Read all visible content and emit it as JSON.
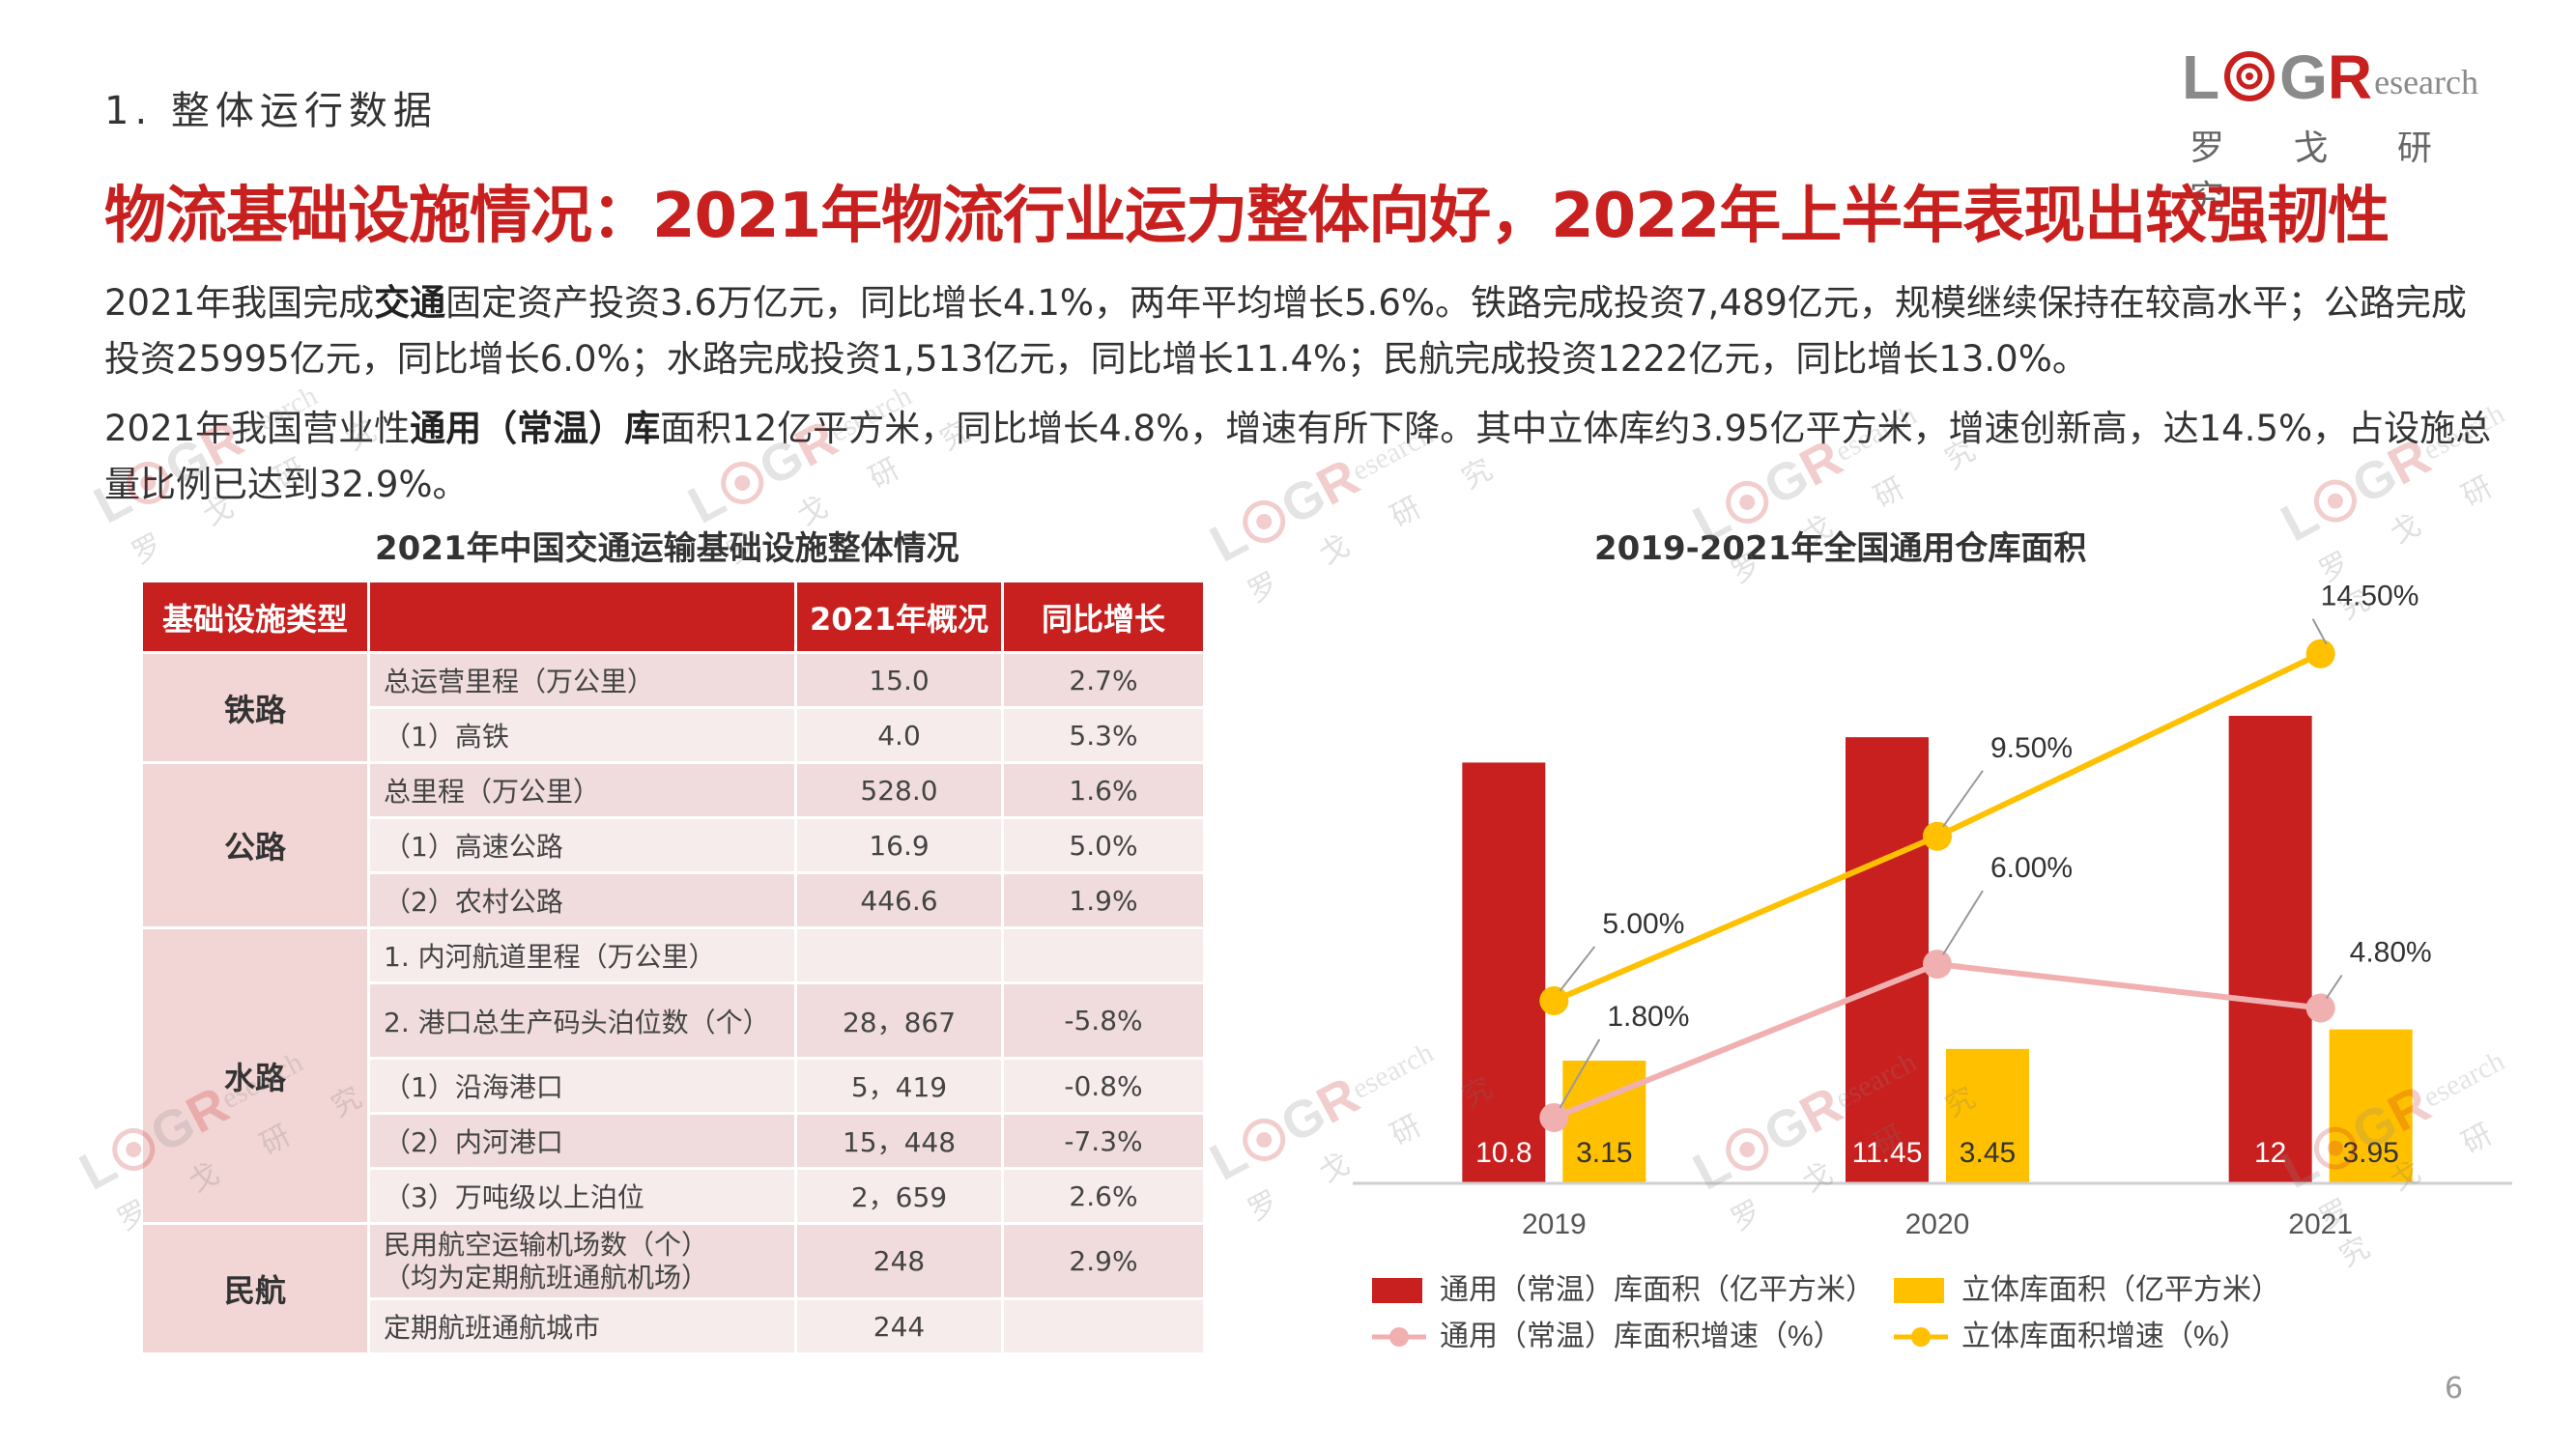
{
  "header": {
    "section_label": "1. 整体运行数据",
    "main_title": "物流基础设施情况：2021年物流行业运力整体向好，2022年上半年表现出较强韧性"
  },
  "logo": {
    "letters": [
      "L",
      "G",
      "R"
    ],
    "word": "esearch",
    "cn": "罗 戈 研 究",
    "color_red": "#c8201f",
    "color_gray": "#8a8a8a"
  },
  "paragraphs": {
    "p1": [
      {
        "t": "2021年我国完成",
        "b": false
      },
      {
        "t": "交通",
        "b": true
      },
      {
        "t": "固定资产投资3.6万亿元，同比增长4.1%，两年平均增长5.6%。铁路完成投资7,489亿元，规模继续保持在较高水平；公路完成投资25995亿元，同比增长6.0%；水路完成投资1,513亿元，同比增长11.4%；民航完成投资1222亿元，同比增长13.0%。",
        "b": false
      }
    ],
    "p2": [
      {
        "t": "2021年我国营业性",
        "b": false
      },
      {
        "t": "通用（常温）库",
        "b": true
      },
      {
        "t": "面积12亿平方米，同比增长4.8%，增速有所下降。其中立体库约3.95亿平方米，增速创新高，达14.5%，占设施总量比例已达到32.9%。",
        "b": false
      }
    ]
  },
  "table": {
    "title": "2021年中国交通运输基础设施整体情况",
    "headers": [
      "基础设施类型",
      "",
      "2021年概况",
      "同比增长"
    ],
    "groups": [
      {
        "category": "铁路",
        "rows": [
          {
            "item": "总运营里程（万公里）",
            "value": "15.0",
            "growth": "2.7%"
          },
          {
            "item": "（1）高铁",
            "value": "4.0",
            "growth": "5.3%"
          }
        ]
      },
      {
        "category": "公路",
        "rows": [
          {
            "item": "总里程（万公里）",
            "value": "528.0",
            "growth": "1.6%"
          },
          {
            "item": "（1）高速公路",
            "value": "16.9",
            "growth": "5.0%"
          },
          {
            "item": "（2）农村公路",
            "value": "446.6",
            "growth": "1.9%"
          }
        ]
      },
      {
        "category": "水路",
        "rows": [
          {
            "item": "1. 内河航道里程（万公里）",
            "value": "",
            "growth": ""
          },
          {
            "item": "2. 港口总生产码头泊位数（个）",
            "value": "28，867",
            "growth": "-5.8%"
          },
          {
            "item": "（1）沿海港口",
            "value": "5，419",
            "growth": "-0.8%"
          },
          {
            "item": "（2）内河港口",
            "value": "15，448",
            "growth": "-7.3%"
          },
          {
            "item": "（3）万吨级以上泊位",
            "value": "2，659",
            "growth": "2.6%"
          }
        ]
      },
      {
        "category": "民航",
        "rows": [
          {
            "item": "民用航空运输机场数（个）",
            "item2": "（均为定期航班通航机场）",
            "value": "248",
            "growth": "2.9%"
          },
          {
            "item": "定期航班通航城市",
            "value": "244",
            "growth": ""
          }
        ]
      }
    ]
  },
  "chart_data": {
    "type": "bar",
    "title": "2019-2021年全国通用仓库面积",
    "categories": [
      "2019",
      "2020",
      "2021"
    ],
    "series": [
      {
        "name": "通用（常温）库面积（亿平方米）",
        "kind": "bar",
        "color": "#c8201f",
        "values": [
          10.8,
          11.45,
          12
        ],
        "labels": [
          "10.8",
          "11.45",
          "12"
        ]
      },
      {
        "name": "立体库面积（亿平方米）",
        "kind": "bar",
        "color": "#ffc000",
        "values": [
          3.15,
          3.45,
          3.95
        ],
        "labels": [
          "3.15",
          "3.45",
          "3.95"
        ]
      },
      {
        "name": "通用（常温）库面积增速（%）",
        "kind": "line",
        "color": "#f1b0b0",
        "values": [
          1.8,
          6.0,
          4.8
        ],
        "labels": [
          "1.80%",
          "6.00%",
          "4.80%"
        ]
      },
      {
        "name": "立体库面积增速（%）",
        "kind": "line",
        "color": "#ffc000",
        "values": [
          5.0,
          9.5,
          14.5
        ],
        "labels": [
          "5.00%",
          "9.50%",
          "14.50%"
        ]
      }
    ],
    "bar_ylim": [
      0,
      15
    ],
    "line_ylim": [
      0,
      16
    ],
    "legend_position": "bottom",
    "grid": false
  },
  "footer": {
    "page_number": "6"
  }
}
